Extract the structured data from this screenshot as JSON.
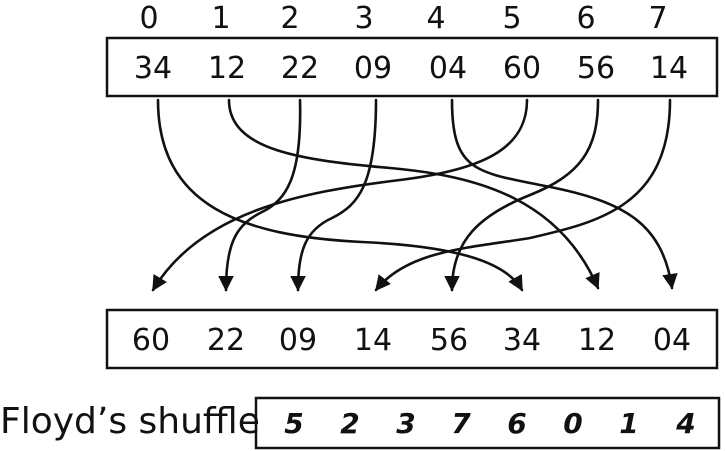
{
  "indices": [
    "0",
    "1",
    "2",
    "3",
    "4",
    "5",
    "6",
    "7"
  ],
  "input_values": [
    "34",
    "12",
    "22",
    "09",
    "04",
    "60",
    "56",
    "14"
  ],
  "output_values": [
    "60",
    "22",
    "09",
    "14",
    "56",
    "34",
    "12",
    "04"
  ],
  "shuffle_label": "Floyd’s shuffle",
  "shuffle_values": [
    "5",
    "2",
    "3",
    "7",
    "6",
    "0",
    "1",
    "4"
  ],
  "mapping": [
    {
      "from": 0,
      "to": 5
    },
    {
      "from": 1,
      "to": 6
    },
    {
      "from": 2,
      "to": 1
    },
    {
      "from": 3,
      "to": 2
    },
    {
      "from": 4,
      "to": 7
    },
    {
      "from": 5,
      "to": 0
    },
    {
      "from": 6,
      "to": 4
    },
    {
      "from": 7,
      "to": 3
    }
  ]
}
